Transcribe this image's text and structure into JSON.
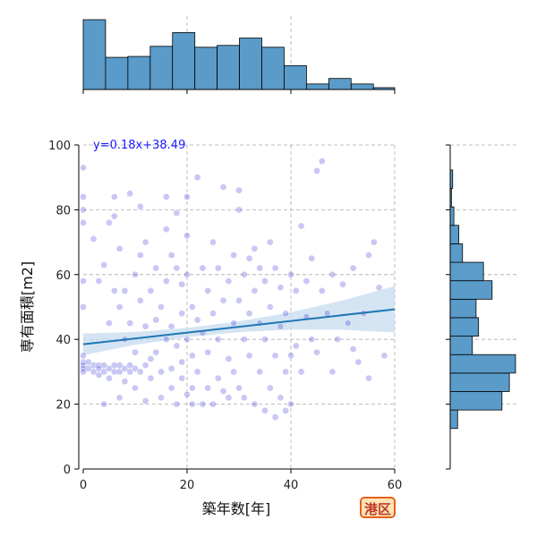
{
  "chart_data": {
    "type": "scatter",
    "xlabel": "築年数[年]",
    "ylabel": "専有面積[m2]",
    "xlim": [
      0,
      60
    ],
    "ylim": [
      0,
      100
    ],
    "x_ticks": [
      0,
      20,
      40,
      60
    ],
    "y_ticks": [
      0,
      20,
      40,
      60,
      80,
      100
    ],
    "grid": true,
    "regression": {
      "label": "y=0.18x+38.49",
      "slope": 0.18,
      "intercept": 38.49,
      "color": "#1f77b4",
      "ci_color": "#c6dbef"
    },
    "annotation": {
      "label": "港区",
      "text_color": "#c0392b",
      "border_color": "#e8601c",
      "fill": "#ffe4b5"
    },
    "point_color": "#3a3ad8",
    "histogram_color": "#5a9bc9",
    "x_histogram": {
      "bin_edges": [
        0,
        4.3,
        8.6,
        12.9,
        17.2,
        21.5,
        25.8,
        30.1,
        34.4,
        38.7,
        43,
        47.3,
        51.6,
        55.9,
        60
      ],
      "counts": [
        76,
        35,
        36,
        47,
        62,
        46,
        48,
        56,
        46,
        26,
        6,
        12,
        6,
        2
      ]
    },
    "y_histogram": {
      "bin_edges": [
        12.5,
        18.2,
        23.9,
        29.6,
        35.3,
        41,
        46.7,
        52.4,
        58.1,
        63.8,
        69.5,
        75.2,
        80.9,
        86.6,
        92.3,
        98
      ],
      "counts": [
        6,
        42,
        48,
        53,
        18,
        23,
        21,
        34,
        27,
        10,
        7,
        3,
        1,
        2,
        0
      ]
    },
    "points": [
      [
        0,
        93
      ],
      [
        0,
        84
      ],
      [
        0,
        80
      ],
      [
        0,
        76
      ],
      [
        0,
        58
      ],
      [
        0,
        50
      ],
      [
        0,
        35
      ],
      [
        0,
        33
      ],
      [
        0,
        32
      ],
      [
        0,
        31
      ],
      [
        0,
        30
      ],
      [
        1,
        31
      ],
      [
        1,
        33
      ],
      [
        2,
        32
      ],
      [
        2,
        30
      ],
      [
        2,
        71
      ],
      [
        3,
        32
      ],
      [
        3,
        31
      ],
      [
        3,
        29
      ],
      [
        3,
        58
      ],
      [
        4,
        30
      ],
      [
        4,
        32
      ],
      [
        4,
        20
      ],
      [
        4,
        63
      ],
      [
        5,
        31
      ],
      [
        5,
        28
      ],
      [
        5,
        45
      ],
      [
        5,
        76
      ],
      [
        6,
        84
      ],
      [
        6,
        30
      ],
      [
        6,
        32
      ],
      [
        6,
        55
      ],
      [
        6,
        78
      ],
      [
        7,
        30
      ],
      [
        7,
        32
      ],
      [
        7,
        22
      ],
      [
        7,
        50
      ],
      [
        7,
        68
      ],
      [
        8,
        31
      ],
      [
        8,
        27
      ],
      [
        8,
        40
      ],
      [
        8,
        55
      ],
      [
        9,
        30
      ],
      [
        9,
        32
      ],
      [
        9,
        85
      ],
      [
        9,
        45
      ],
      [
        10,
        31
      ],
      [
        10,
        36
      ],
      [
        10,
        60
      ],
      [
        10,
        25
      ],
      [
        11,
        81
      ],
      [
        11,
        30
      ],
      [
        11,
        52
      ],
      [
        11,
        66
      ],
      [
        12,
        32
      ],
      [
        12,
        21
      ],
      [
        12,
        44
      ],
      [
        12,
        70
      ],
      [
        13,
        34
      ],
      [
        13,
        55
      ],
      [
        13,
        28
      ],
      [
        14,
        46
      ],
      [
        14,
        62
      ],
      [
        14,
        36
      ],
      [
        15,
        30
      ],
      [
        15,
        50
      ],
      [
        15,
        22
      ],
      [
        16,
        84
      ],
      [
        16,
        40
      ],
      [
        16,
        58
      ],
      [
        16,
        74
      ],
      [
        17,
        31
      ],
      [
        17,
        44
      ],
      [
        17,
        25
      ],
      [
        17,
        66
      ],
      [
        18,
        38
      ],
      [
        18,
        62
      ],
      [
        18,
        79
      ],
      [
        18,
        20
      ],
      [
        19,
        33
      ],
      [
        19,
        48
      ],
      [
        19,
        28
      ],
      [
        19,
        57
      ],
      [
        20,
        84
      ],
      [
        20,
        40
      ],
      [
        20,
        23
      ],
      [
        20,
        60
      ],
      [
        20,
        72
      ],
      [
        21,
        25
      ],
      [
        21,
        35
      ],
      [
        21,
        20
      ],
      [
        21,
        50
      ],
      [
        22,
        46
      ],
      [
        22,
        90
      ],
      [
        22,
        30
      ],
      [
        23,
        20
      ],
      [
        23,
        42
      ],
      [
        23,
        62
      ],
      [
        24,
        25
      ],
      [
        24,
        55
      ],
      [
        24,
        36
      ],
      [
        25,
        20
      ],
      [
        25,
        48
      ],
      [
        25,
        70
      ],
      [
        26,
        28
      ],
      [
        26,
        62
      ],
      [
        26,
        40
      ],
      [
        27,
        24
      ],
      [
        27,
        52
      ],
      [
        27,
        87
      ],
      [
        28,
        34
      ],
      [
        28,
        58
      ],
      [
        28,
        22
      ],
      [
        29,
        45
      ],
      [
        29,
        66
      ],
      [
        29,
        30
      ],
      [
        30,
        86
      ],
      [
        30,
        25
      ],
      [
        30,
        52
      ],
      [
        30,
        80
      ],
      [
        31,
        40
      ],
      [
        31,
        60
      ],
      [
        31,
        22
      ],
      [
        32,
        35
      ],
      [
        32,
        65
      ],
      [
        32,
        48
      ],
      [
        33,
        20
      ],
      [
        33,
        55
      ],
      [
        33,
        68
      ],
      [
        34,
        30
      ],
      [
        34,
        45
      ],
      [
        34,
        62
      ],
      [
        35,
        18
      ],
      [
        35,
        40
      ],
      [
        35,
        58
      ],
      [
        36,
        25
      ],
      [
        36,
        50
      ],
      [
        36,
        70
      ],
      [
        37,
        16
      ],
      [
        37,
        35
      ],
      [
        37,
        62
      ],
      [
        38,
        22
      ],
      [
        38,
        44
      ],
      [
        38,
        56
      ],
      [
        39,
        18
      ],
      [
        39,
        30
      ],
      [
        39,
        48
      ],
      [
        40,
        20
      ],
      [
        40,
        35
      ],
      [
        40,
        60
      ],
      [
        41,
        38
      ],
      [
        41,
        55
      ],
      [
        42,
        30
      ],
      [
        42,
        75
      ],
      [
        43,
        47
      ],
      [
        43,
        58
      ],
      [
        44,
        40
      ],
      [
        44,
        65
      ],
      [
        45,
        92
      ],
      [
        45,
        36
      ],
      [
        46,
        95
      ],
      [
        46,
        55
      ],
      [
        47,
        48
      ],
      [
        48,
        60
      ],
      [
        48,
        30
      ],
      [
        49,
        40
      ],
      [
        50,
        57
      ],
      [
        51,
        45
      ],
      [
        52,
        37
      ],
      [
        52,
        62
      ],
      [
        53,
        33
      ],
      [
        54,
        48
      ],
      [
        55,
        28
      ],
      [
        55,
        66
      ],
      [
        56,
        70
      ],
      [
        57,
        56
      ],
      [
        58,
        35
      ]
    ]
  }
}
